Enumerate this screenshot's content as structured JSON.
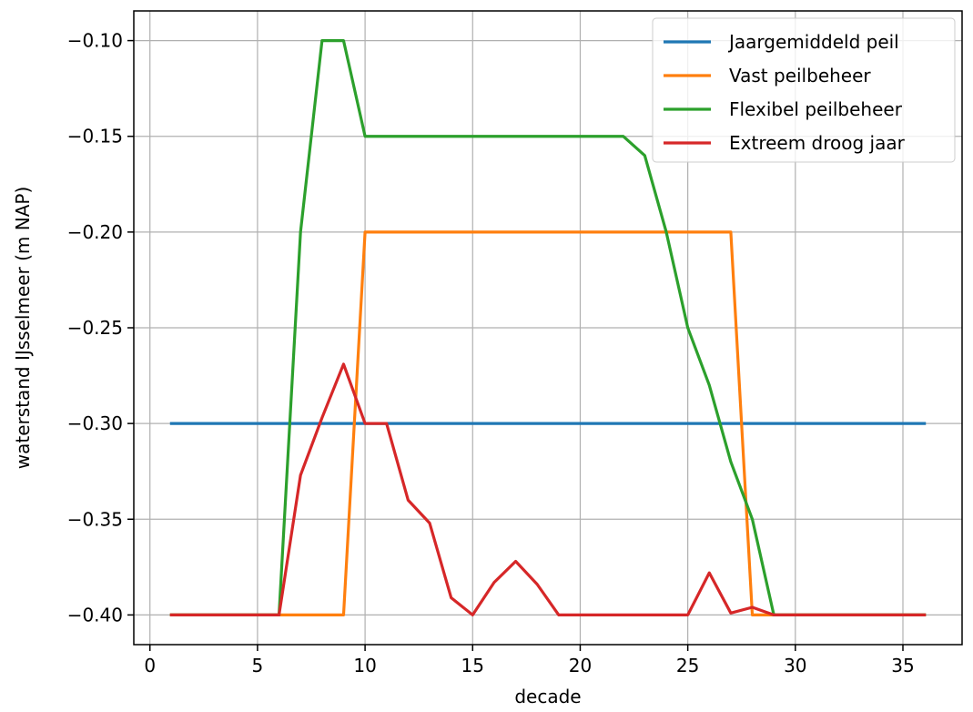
{
  "chart_data": {
    "type": "line",
    "title": "",
    "xlabel": "decade",
    "ylabel": "waterstand IJsselmeer (m NAP)",
    "xlim": [
      -0.75,
      37.75
    ],
    "ylim": [
      -0.4155,
      -0.0845
    ],
    "xticks": [
      0,
      5,
      10,
      15,
      20,
      25,
      30,
      35
    ],
    "xtick_labels": [
      "0",
      "5",
      "10",
      "15",
      "20",
      "25",
      "30",
      "35"
    ],
    "yticks": [
      -0.1,
      -0.15,
      -0.2,
      -0.25,
      -0.3,
      -0.35,
      -0.4
    ],
    "ytick_labels": [
      "−0.10",
      "−0.15",
      "−0.20",
      "−0.25",
      "−0.30",
      "−0.35",
      "−0.40"
    ],
    "grid": true,
    "legend_position": "top-right",
    "series": [
      {
        "name": "Jaargemiddeld peil",
        "color": "#1f77b4",
        "x": [
          1,
          36
        ],
        "y": [
          -0.3,
          -0.3
        ]
      },
      {
        "name": "Vast peilbeheer",
        "color": "#ff7f0e",
        "x": [
          1,
          9,
          10,
          27,
          28,
          36
        ],
        "y": [
          -0.4,
          -0.4,
          -0.2,
          -0.2,
          -0.4,
          -0.4
        ]
      },
      {
        "name": "Flexibel peilbeheer",
        "color": "#2ca02c",
        "x": [
          1,
          6,
          7,
          8,
          9,
          10,
          22,
          23,
          24,
          25,
          26,
          27,
          28,
          29,
          36
        ],
        "y": [
          -0.4,
          -0.4,
          -0.2,
          -0.1,
          -0.1,
          -0.15,
          -0.15,
          -0.16,
          -0.2,
          -0.25,
          -0.28,
          -0.32,
          -0.35,
          -0.4,
          -0.4
        ]
      },
      {
        "name": "Extreem droog jaar",
        "color": "#d62728",
        "x": [
          1,
          6,
          7,
          8,
          9,
          10,
          11,
          12,
          13,
          14,
          15,
          16,
          17,
          18,
          19,
          20,
          25,
          26,
          27,
          28,
          29,
          36
        ],
        "y": [
          -0.4,
          -0.4,
          -0.327,
          -0.297,
          -0.269,
          -0.3,
          -0.3,
          -0.34,
          -0.352,
          -0.391,
          -0.4,
          -0.383,
          -0.372,
          -0.384,
          -0.4,
          -0.4,
          -0.4,
          -0.378,
          -0.399,
          -0.396,
          -0.4,
          -0.4
        ]
      }
    ]
  }
}
